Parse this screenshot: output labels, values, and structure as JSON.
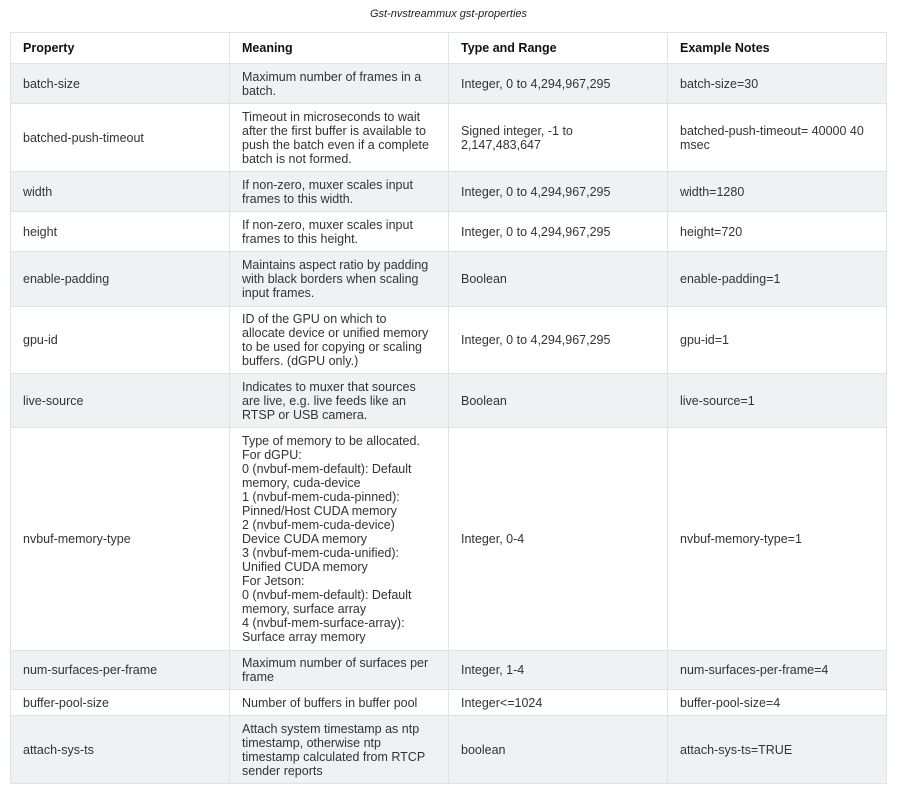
{
  "caption": "Gst-nvstreammux gst-properties",
  "headers": [
    "Property",
    "Meaning",
    "Type and Range",
    "Example Notes"
  ],
  "rows": [
    [
      "batch-size",
      "Maximum number of frames in a\nbatch.",
      "Integer, 0 to 4,294,967,295",
      "batch-size=30"
    ],
    [
      "batched-push-timeout",
      "Timeout in microseconds to wait\nafter the first buffer is available to\npush the batch even if a complete\nbatch is not formed.",
      "Signed integer, -1 to\n2,147,483,647",
      "batched-push-timeout= 40000 40\nmsec"
    ],
    [
      "width",
      "If non-zero, muxer scales input\nframes to this width.",
      "Integer, 0 to 4,294,967,295",
      "width=1280"
    ],
    [
      "height",
      "If non-zero, muxer scales input\nframes to this height.",
      "Integer, 0 to 4,294,967,295",
      "height=720"
    ],
    [
      "enable-padding",
      "Maintains aspect ratio by padding\nwith black borders when scaling\ninput frames.",
      "Boolean",
      "enable-padding=1"
    ],
    [
      "gpu-id",
      "ID of the GPU on which to\nallocate device or unified memory\nto be used for copying or scaling\nbuffers. (dGPU only.)",
      "Integer, 0 to 4,294,967,295",
      "gpu-id=1"
    ],
    [
      "live-source",
      "Indicates to muxer that sources\nare live, e.g. live feeds like an\nRTSP or USB camera.",
      "Boolean",
      "live-source=1"
    ],
    [
      "nvbuf-memory-type",
      "Type of memory to be allocated.\nFor dGPU:\n0 (nvbuf-mem-default): Default\nmemory, cuda-device\n1 (nvbuf-mem-cuda-pinned):\nPinned/Host CUDA memory\n2 (nvbuf-mem-cuda-device)\nDevice CUDA memory\n3 (nvbuf-mem-cuda-unified):\nUnified CUDA memory\nFor Jetson:\n0 (nvbuf-mem-default): Default\nmemory, surface array\n4 (nvbuf-mem-surface-array):\nSurface array memory",
      "Integer, 0-4",
      "nvbuf-memory-type=1"
    ],
    [
      "num-surfaces-per-frame",
      "Maximum number of surfaces per\nframe",
      "Integer, 1-4",
      "num-surfaces-per-frame=4"
    ],
    [
      "buffer-pool-size",
      "Number of buffers in buffer pool",
      "Integer<=1024",
      "buffer-pool-size=4"
    ],
    [
      "attach-sys-ts",
      "Attach system timestamp as ntp\ntimestamp, otherwise ntp\ntimestamp calculated from RTCP\nsender reports",
      "boolean",
      "attach-sys-ts=TRUE"
    ]
  ]
}
